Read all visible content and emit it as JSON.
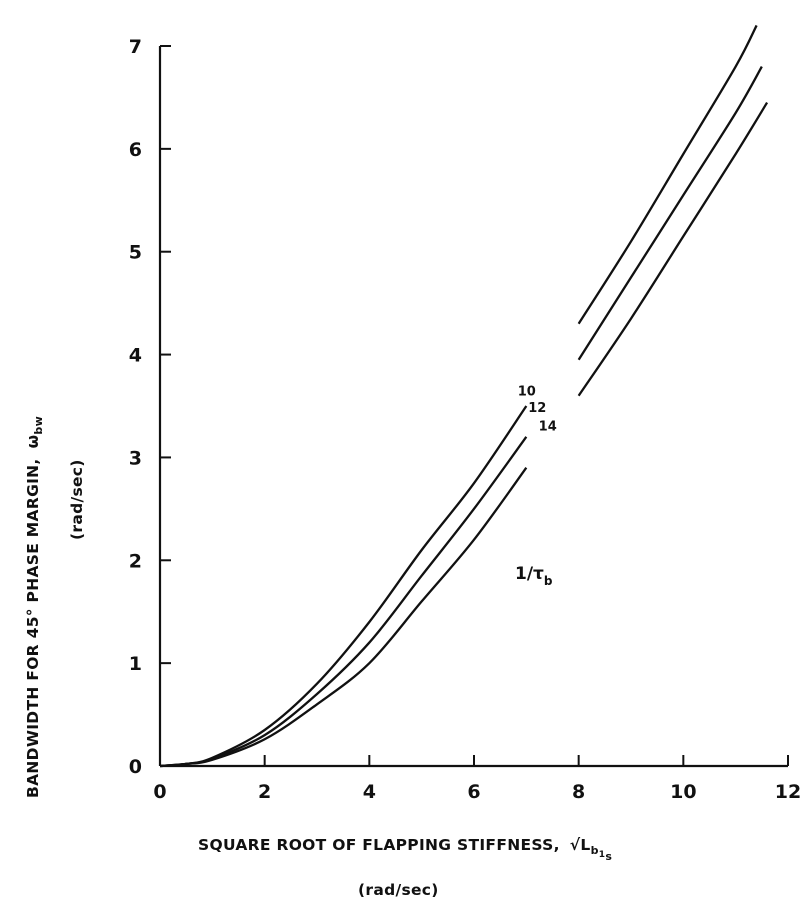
{
  "chart_data": {
    "type": "line",
    "title": "",
    "xlabel": "SQUARE ROOT OF FLAPPING STIFFNESS, √L_b1s",
    "xlabel_text": "SQUARE ROOT OF FLAPPING STIFFNESS,",
    "xlabel_symbol": "√L",
    "xlabel_sub": "b",
    "xlabel_subsub": "1",
    "xlabel_subsub2": "s",
    "xunits": "(rad/sec)",
    "ylabel": "BANDWIDTH FOR 45° PHASE MARGIN, ω_bw",
    "ylabel_text": "BANDWIDTH FOR 45° PHASE MARGIN,",
    "ylabel_symbol": "ω",
    "ylabel_sub": "bw",
    "yunits": "(rad/sec)",
    "xlim": [
      0,
      12
    ],
    "ylim": [
      0,
      7
    ],
    "xticks": [
      0,
      2,
      4,
      6,
      8,
      10,
      12
    ],
    "yticks": [
      0,
      1,
      2,
      3,
      4,
      5,
      6,
      7
    ],
    "grid": false,
    "legend_title": "1/τ_b",
    "legend_title_text": "1/τ",
    "legend_title_sub": "b",
    "series": [
      {
        "name": "10",
        "x": [
          0,
          0.5,
          1.0,
          2.0,
          3.0,
          4.0,
          5.0,
          6.0,
          7.0,
          8.0,
          9.0,
          10.0,
          11.0,
          11.4
        ],
        "y": [
          0,
          0.02,
          0.08,
          0.35,
          0.8,
          1.4,
          2.1,
          2.75,
          3.5,
          4.3,
          5.1,
          5.95,
          6.8,
          7.2
        ]
      },
      {
        "name": "12",
        "x": [
          0,
          0.5,
          1.0,
          2.0,
          3.0,
          4.0,
          5.0,
          6.0,
          7.0,
          8.0,
          9.0,
          10.0,
          11.0,
          11.5
        ],
        "y": [
          0,
          0.02,
          0.07,
          0.3,
          0.7,
          1.2,
          1.85,
          2.5,
          3.2,
          3.95,
          4.75,
          5.55,
          6.35,
          6.8
        ]
      },
      {
        "name": "14",
        "x": [
          0,
          0.5,
          1.0,
          2.0,
          3.0,
          4.0,
          5.0,
          6.0,
          7.0,
          8.0,
          9.0,
          10.0,
          11.0,
          11.6
        ],
        "y": [
          0,
          0.02,
          0.06,
          0.26,
          0.6,
          1.0,
          1.6,
          2.2,
          2.9,
          3.6,
          4.35,
          5.15,
          5.95,
          6.45
        ]
      }
    ],
    "curve_label_at_x": [
      7.2,
      7.4,
      7.6
    ]
  }
}
